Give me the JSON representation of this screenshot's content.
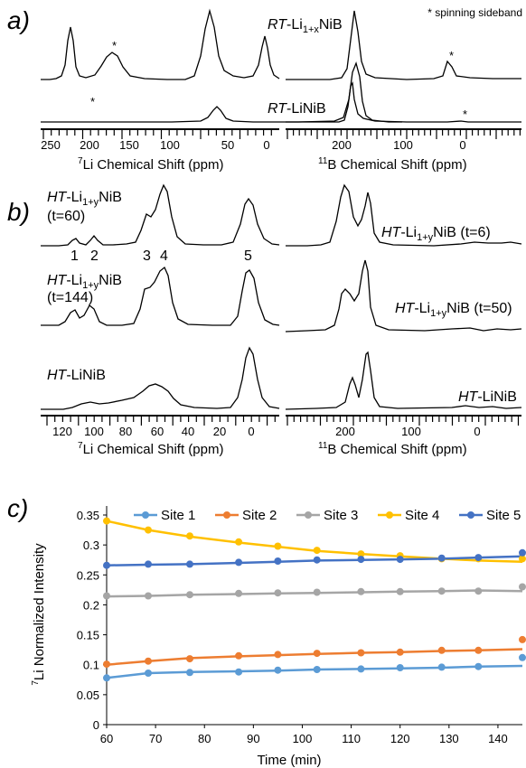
{
  "panels": {
    "a": {
      "label": "a)",
      "note": "* spinning sideband",
      "li_axis_label": "Li Chemical Shift (ppm)",
      "li_axis_sup": "7",
      "b_axis_label": "B Chemical Shift (ppm)",
      "b_axis_sup": "11",
      "li_ticks": [
        "250",
        "200",
        "150",
        "100",
        "50",
        "0"
      ],
      "b_ticks": [
        "200",
        "100",
        "0"
      ],
      "top_label": {
        "pre": "RT",
        "mid": "-Li",
        "sub": "1+x",
        "post": "NiB"
      },
      "bottom_label": {
        "pre": "RT",
        "post": "-LiNiB"
      },
      "star": "*"
    },
    "b": {
      "label": "b)",
      "li_axis_label": "Li Chemical Shift (ppm)",
      "li_axis_sup": "7",
      "b_axis_label": "B Chemical Shift (ppm)",
      "b_axis_sup": "11",
      "li_ticks": [
        "120",
        "100",
        "80",
        "60",
        "40",
        "20",
        "0"
      ],
      "b_ticks": [
        "200",
        "100",
        "0"
      ],
      "li_top": {
        "pre": "HT",
        "mid": "-Li",
        "sub": "1+y",
        "post": "NiB",
        "t": "(t=60)"
      },
      "li_mid": {
        "pre": "HT",
        "mid": "-Li",
        "sub": "1+y",
        "post": "NiB",
        "t": "(t=144)"
      },
      "li_bot": {
        "pre": "HT",
        "post": "-LiNiB"
      },
      "b_top": {
        "pre": "HT",
        "mid": "-Li",
        "sub": "1+y",
        "post": "NiB (t=6)"
      },
      "b_mid": {
        "pre": "HT",
        "mid": "-Li",
        "sub": "1+y",
        "post": "NiB (t=50)"
      },
      "b_bot": {
        "pre": "HT",
        "post": "-LiNiB"
      },
      "site_numbers": [
        "1",
        "2",
        "3",
        "4",
        "5"
      ]
    },
    "c": {
      "label": "c)"
    }
  },
  "chart_data": {
    "type": "line",
    "title": "",
    "xlabel": "Time (min)",
    "ylabel": "Li Normalized Intensity",
    "ylabel_sup": "7",
    "xlim": [
      60,
      145
    ],
    "ylim": [
      0,
      0.35
    ],
    "xticks": [
      "60",
      "70",
      "80",
      "90",
      "100",
      "110",
      "120",
      "130",
      "140"
    ],
    "yticks": [
      "0",
      "0.05",
      "0.1",
      "0.15",
      "0.2",
      "0.25",
      "0.3",
      "0.35"
    ],
    "legend_position": "top",
    "x": [
      60,
      68.5,
      77,
      87,
      95,
      103,
      112,
      120,
      128.5,
      136,
      145
    ],
    "series": [
      {
        "name": "Site 1",
        "color": "#5b9bd5",
        "values": [
          0.078,
          0.086,
          0.087,
          0.088,
          0.091,
          0.092,
          0.093,
          0.095,
          0.096,
          0.097,
          0.112
        ],
        "fit": [
          0.078,
          0.086,
          0.088,
          0.089,
          0.09,
          0.092,
          0.093,
          0.094,
          0.095,
          0.097,
          0.098
        ]
      },
      {
        "name": "Site 2",
        "color": "#ed7d31",
        "values": [
          0.101,
          0.106,
          0.11,
          0.115,
          0.117,
          0.119,
          0.12,
          0.121,
          0.124,
          0.124,
          0.142
        ],
        "fit": [
          0.1,
          0.106,
          0.111,
          0.114,
          0.116,
          0.118,
          0.12,
          0.121,
          0.123,
          0.124,
          0.126
        ]
      },
      {
        "name": "Site 3",
        "color": "#a5a5a5",
        "values": [
          0.215,
          0.215,
          0.217,
          0.219,
          0.22,
          0.221,
          0.222,
          0.222,
          0.223,
          0.223,
          0.23
        ],
        "fit": [
          0.214,
          0.215,
          0.217,
          0.218,
          0.219,
          0.22,
          0.221,
          0.222,
          0.223,
          0.224,
          0.223
        ]
      },
      {
        "name": "Site 4",
        "color": "#ffc000",
        "values": [
          0.34,
          0.325,
          0.315,
          0.305,
          0.298,
          0.291,
          0.285,
          0.282,
          0.277,
          0.277,
          0.277
        ],
        "fit": [
          0.34,
          0.325,
          0.314,
          0.304,
          0.297,
          0.29,
          0.285,
          0.281,
          0.277,
          0.274,
          0.272
        ]
      },
      {
        "name": "Site 5",
        "color": "#4472c4",
        "values": [
          0.266,
          0.268,
          0.268,
          0.271,
          0.273,
          0.275,
          0.276,
          0.276,
          0.278,
          0.279,
          0.287
        ],
        "fit": [
          0.266,
          0.267,
          0.268,
          0.27,
          0.272,
          0.274,
          0.275,
          0.276,
          0.277,
          0.279,
          0.281
        ]
      }
    ]
  }
}
